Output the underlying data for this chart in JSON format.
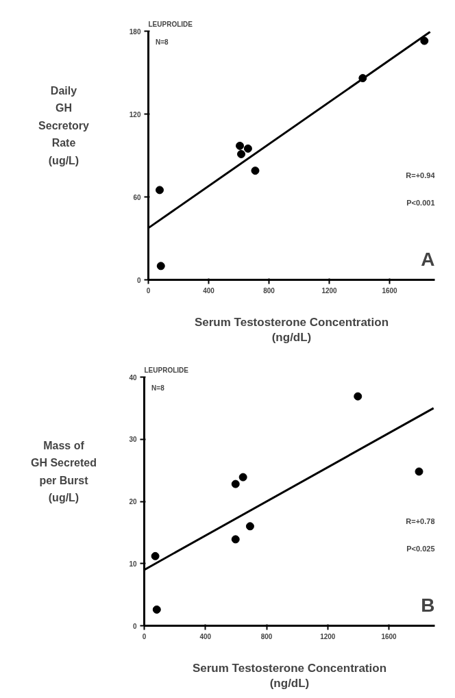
{
  "chart_data": [
    {
      "type": "scatter",
      "title": "LEUPROLIDE",
      "xlabel": "Serum Testosterone Concentration\n(ng/dL)",
      "ylabel": "Daily\nGH\nSecretory\nRate\n(ug/L)",
      "annotations": [
        "N=8",
        "R=+0.94",
        "P<0.001",
        "A"
      ],
      "xlim": [
        0,
        1900
      ],
      "ylim": [
        0,
        180
      ],
      "xticks": [
        0,
        400,
        800,
        1200,
        1600
      ],
      "yticks": [
        0,
        60,
        120,
        180
      ],
      "grid": false,
      "marker": "circle",
      "series": [
        {
          "color": "#000000",
          "x": [
            75,
            83,
            607,
            616,
            661,
            709,
            1422,
            1831
          ],
          "values": [
            65,
            10,
            97,
            91,
            95,
            79,
            146,
            173
          ]
        },
        {
          "type": "line",
          "color": "#000000",
          "marker": "none",
          "line_style": "solid",
          "x": [
            0,
            1869
          ],
          "values": [
            37.5,
            179.5
          ]
        }
      ]
    },
    {
      "type": "scatter",
      "title": "LEUPROLIDE",
      "xlabel": "Serum Testosterone Concentration\n(ng/dL)",
      "ylabel": "Mass of\nGH Secreted\nper Burst\n(ug/L)",
      "annotations": [
        "N=8",
        "R=+0.78",
        "P<0.025",
        "B"
      ],
      "xlim": [
        0,
        1900
      ],
      "ylim": [
        0,
        40
      ],
      "xticks": [
        0,
        400,
        800,
        1200,
        1600
      ],
      "yticks": [
        0,
        10,
        20,
        30,
        40
      ],
      "grid": false,
      "marker": "circle",
      "series": [
        {
          "color": "#000000",
          "x": [
            72,
            82,
            597,
            646,
            597,
            692,
            1397,
            1797
          ],
          "values": [
            11.2,
            2.6,
            22.8,
            23.9,
            13.9,
            16.0,
            36.9,
            24.8
          ]
        },
        {
          "type": "line",
          "color": "#000000",
          "marker": "none",
          "line_style": "solid",
          "x": [
            0,
            1892
          ],
          "values": [
            9.0,
            35.0
          ]
        }
      ]
    }
  ]
}
